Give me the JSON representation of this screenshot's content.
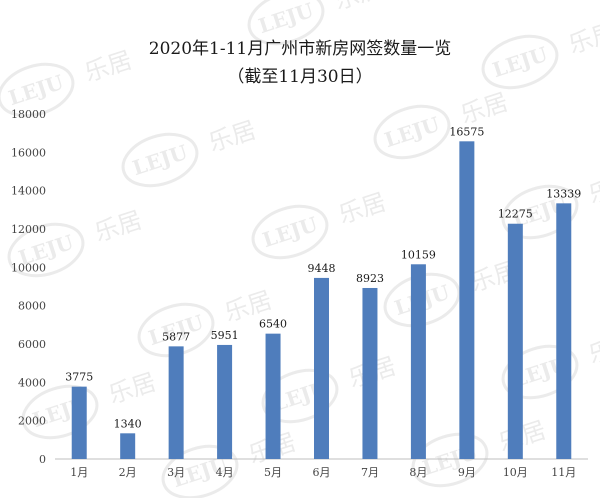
{
  "chart_data": {
    "type": "bar",
    "title": "2020年1-11月广州市新房网签数量一览",
    "subtitle": "（截至11月30日）",
    "categories": [
      "1月",
      "2月",
      "3月",
      "4月",
      "5月",
      "6月",
      "7月",
      "8月",
      "9月",
      "10月",
      "11月"
    ],
    "values": [
      3775,
      1340,
      5877,
      5951,
      6540,
      9448,
      8923,
      10159,
      16575,
      12275,
      13339
    ],
    "xlabel": "",
    "ylabel": "",
    "ylim": [
      0,
      18000
    ],
    "yticks": [
      0,
      2000,
      4000,
      6000,
      8000,
      10000,
      12000,
      14000,
      16000,
      18000
    ],
    "grid": false,
    "bar_color": "#4f7dbc",
    "data_labels": true
  },
  "watermark": {
    "logo_text": "LEJU",
    "brand_text": "乐居"
  }
}
